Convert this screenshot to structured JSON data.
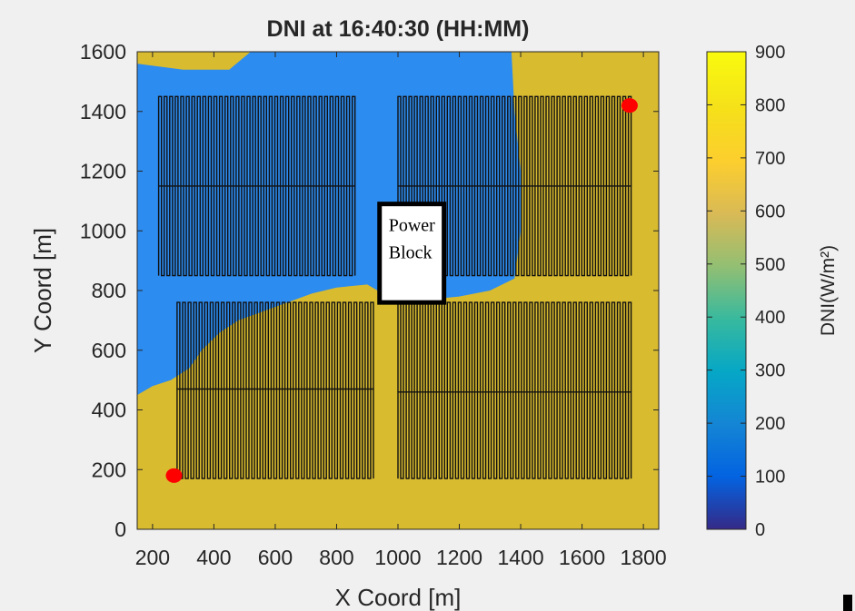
{
  "chart_data": {
    "type": "heatmap",
    "title": "DNI at 16:40:30 (HH:MM)",
    "xlabel": "X Coord [m]",
    "ylabel": "Y Coord [m]",
    "xlim": [
      150,
      1850
    ],
    "ylim": [
      0,
      1600
    ],
    "x_ticks": [
      200,
      400,
      600,
      800,
      1000,
      1200,
      1400,
      1600,
      1800
    ],
    "y_ticks": [
      0,
      200,
      400,
      600,
      800,
      1000,
      1200,
      1400,
      1600
    ],
    "colorbar": {
      "label": "DNI(W/m²)",
      "range": [
        0,
        900
      ],
      "ticks": [
        0,
        100,
        200,
        300,
        400,
        500,
        600,
        700,
        800,
        900
      ],
      "colormap": "parula"
    },
    "regions": [
      {
        "value": 730,
        "color": "#d9bb2f"
      },
      {
        "value": 230,
        "color": "#2d8cf0"
      }
    ],
    "cloud_boundary": [
      [
        150,
        450
      ],
      [
        200,
        480
      ],
      [
        260,
        500
      ],
      [
        320,
        540
      ],
      [
        360,
        600
      ],
      [
        420,
        660
      ],
      [
        480,
        700
      ],
      [
        560,
        730
      ],
      [
        640,
        760
      ],
      [
        720,
        790
      ],
      [
        800,
        810
      ],
      [
        900,
        820
      ],
      [
        1000,
        760
      ],
      [
        1100,
        770
      ],
      [
        1200,
        780
      ],
      [
        1300,
        800
      ],
      [
        1380,
        840
      ],
      [
        1400,
        1000
      ],
      [
        1400,
        1200
      ],
      [
        1380,
        1400
      ],
      [
        1370,
        1600
      ],
      [
        520,
        1600
      ],
      [
        450,
        1540
      ],
      [
        300,
        1540
      ],
      [
        150,
        1560
      ]
    ],
    "loop_blocks": [
      {
        "x0": 220,
        "x1": 860,
        "y0": 1150,
        "y1": 1450,
        "loops": 36
      },
      {
        "x0": 220,
        "x1": 860,
        "y0": 850,
        "y1": 1150,
        "loops": 36
      },
      {
        "x0": 1000,
        "x1": 1760,
        "y0": 1150,
        "y1": 1450,
        "loops": 43
      },
      {
        "x0": 1000,
        "x1": 1760,
        "y0": 850,
        "y1": 1150,
        "loops": 43
      },
      {
        "x0": 280,
        "x1": 920,
        "y0": 470,
        "y1": 760,
        "loops": 36
      },
      {
        "x0": 280,
        "x1": 920,
        "y0": 170,
        "y1": 470,
        "loops": 36
      },
      {
        "x0": 1000,
        "x1": 1760,
        "y0": 460,
        "y1": 760,
        "loops": 43
      },
      {
        "x0": 1000,
        "x1": 1760,
        "y0": 170,
        "y1": 460,
        "loops": 43
      }
    ],
    "power_block": {
      "label_line1": "Power",
      "label_line2": "Block",
      "x0": 940,
      "x1": 1150,
      "y0": 760,
      "y1": 1090
    },
    "red_markers": [
      {
        "x": 270,
        "y": 180
      },
      {
        "x": 1755,
        "y": 1420
      }
    ]
  }
}
